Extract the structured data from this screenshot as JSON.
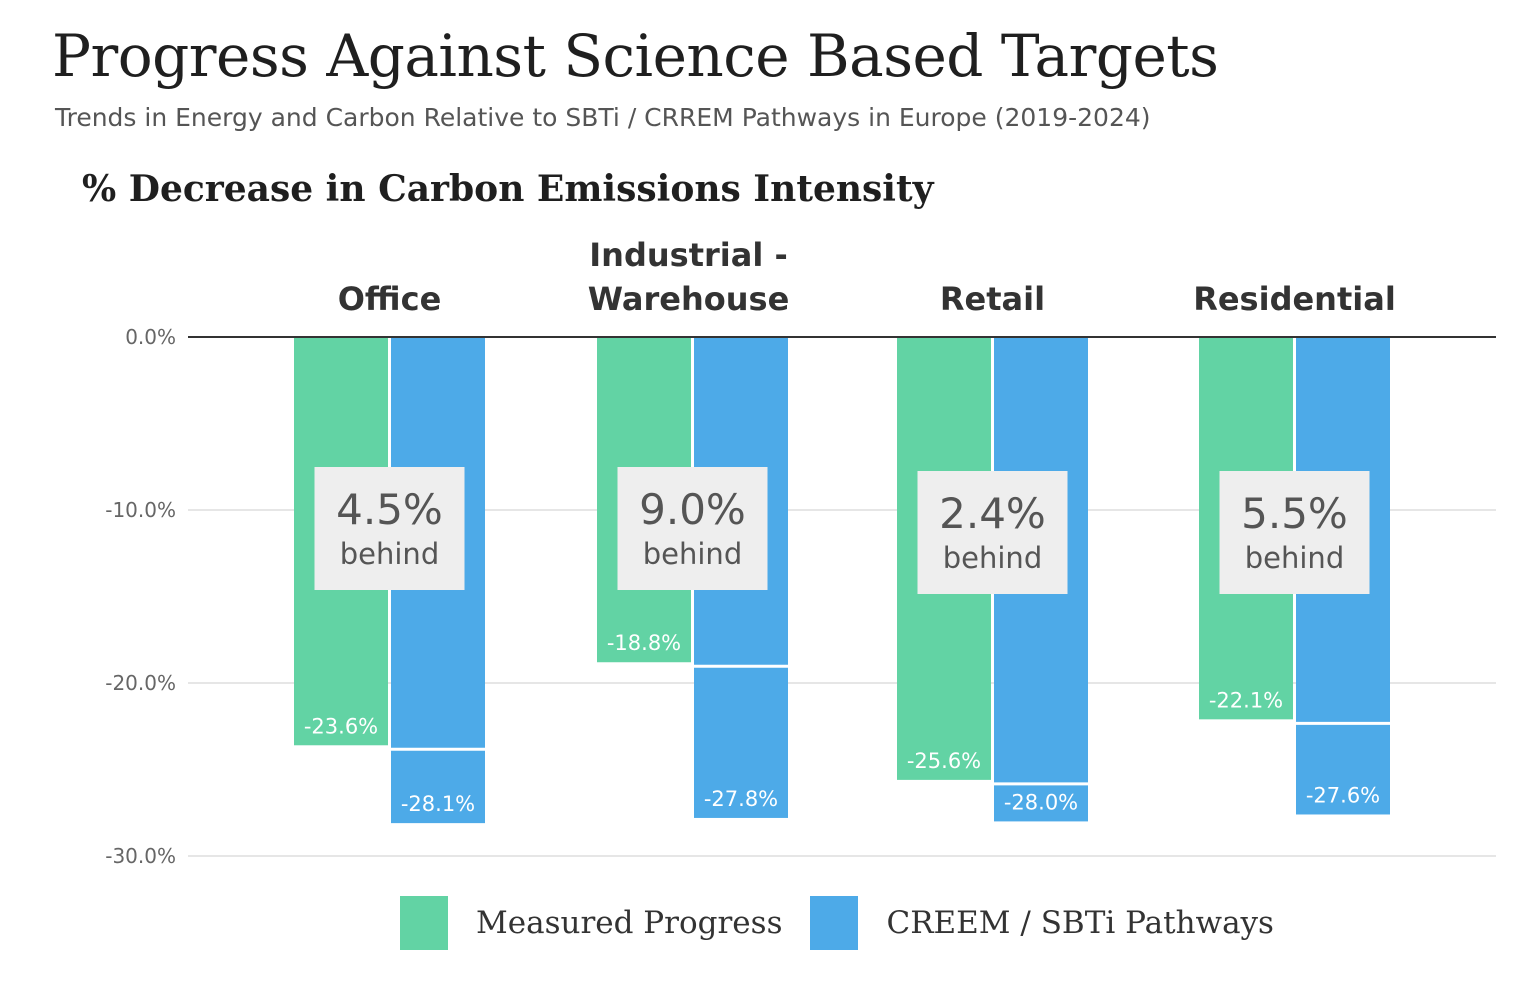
{
  "header": {
    "title": "Progress Against Science Based Targets",
    "subtitle": "Trends in Energy and Carbon Relative to SBTi / CRREM Pathways in Europe (2019-2024)"
  },
  "colors": {
    "measured": "#62D3A4",
    "pathway": "#4DAAE8",
    "callout_bg": "#EEEEEE",
    "grid": "#DDDDDD",
    "axis": "#333333"
  },
  "chart_data": {
    "type": "bar",
    "title": "% Decrease in Carbon Emissions Intensity",
    "categories": [
      "Office",
      "Industrial - Warehouse",
      "Retail",
      "Residential"
    ],
    "series": [
      {
        "name": "Measured Progress",
        "values": [
          -23.6,
          -18.8,
          -25.6,
          -22.1
        ],
        "labels": [
          "-23.6%",
          "-18.8%",
          "-25.6%",
          "-22.1%"
        ]
      },
      {
        "name": "CREEM / SBTi Pathways",
        "values": [
          -28.1,
          -27.8,
          -28.0,
          -27.6
        ],
        "labels": [
          "-28.1%",
          "-27.8%",
          "-28.0%",
          "-27.6%"
        ]
      }
    ],
    "yticks": [
      "0.0%",
      "-10.0%",
      "-20.0%",
      "-30.0%"
    ],
    "ytick_values": [
      0,
      -10,
      -20,
      -30
    ],
    "ylim": [
      -30,
      0
    ],
    "annotations": [
      {
        "value": "4.5%",
        "text": "behind"
      },
      {
        "value": "9.0%",
        "text": "behind"
      },
      {
        "value": "2.4%",
        "text": "behind"
      },
      {
        "value": "5.5%",
        "text": "behind"
      }
    ],
    "grid": true,
    "legend_position": "bottom-center"
  }
}
